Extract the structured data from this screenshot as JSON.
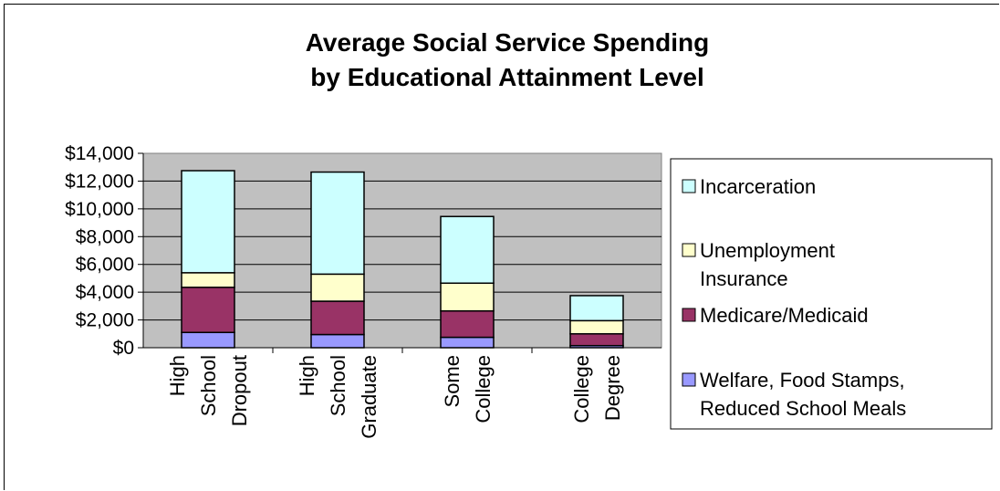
{
  "chart_data": {
    "type": "bar",
    "stacked": true,
    "title": [
      "Average Social Service Spending",
      "by Educational Attainment Level"
    ],
    "xlabel": "",
    "ylabel": "",
    "ylim": [
      0,
      14000
    ],
    "yticks": [
      "$0",
      "$2,000",
      "$4,000",
      "$6,000",
      "$8,000",
      "$10,000",
      "$12,000",
      "$14,000"
    ],
    "grid": true,
    "legend_position": "right",
    "categories": [
      [
        "High",
        "School",
        "Dropout"
      ],
      [
        "High",
        "School",
        "Graduate"
      ],
      [
        "Some",
        "College"
      ],
      [
        "College",
        "Degree"
      ]
    ],
    "series": [
      {
        "name": "Welfare, Food Stamps, Reduced School Meals",
        "legend_lines": [
          "Welfare, Food Stamps,",
          "Reduced School Meals"
        ],
        "color": "#9999ff",
        "values": [
          1100,
          950,
          750,
          150
        ]
      },
      {
        "name": "Medicare/Medicaid",
        "legend_lines": [
          "Medicare/Medicaid"
        ],
        "color": "#993366",
        "values": [
          3250,
          2400,
          1900,
          850
        ]
      },
      {
        "name": "Unemployment Insurance",
        "legend_lines": [
          "Unemployment",
          "Insurance"
        ],
        "color": "#ffffcc",
        "values": [
          1050,
          1950,
          2000,
          950
        ]
      },
      {
        "name": "Incarceration",
        "legend_lines": [
          "Incarceration"
        ],
        "color": "#ccffff",
        "values": [
          7350,
          7350,
          4800,
          1800
        ]
      }
    ],
    "plot_bg": "#c0c0c0"
  }
}
